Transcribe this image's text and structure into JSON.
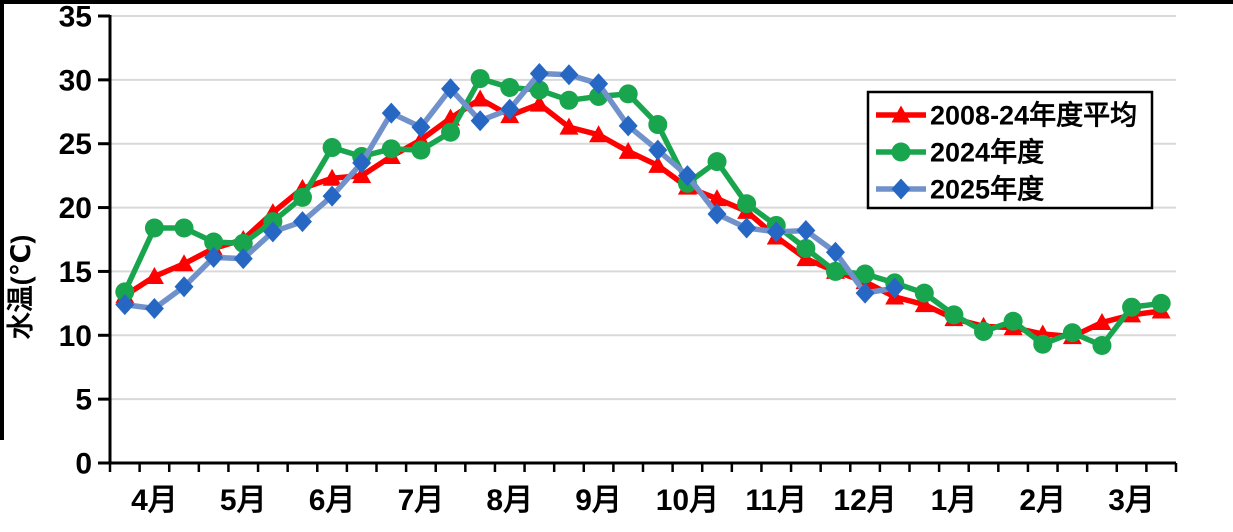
{
  "frame": {
    "top_border_color": "#000000",
    "left_border_color": "#000000",
    "background": "#ffffff"
  },
  "chart_data": {
    "type": "line",
    "title": "",
    "ylabel": "水温(℃)",
    "xlabel": "",
    "ylim": [
      0,
      35
    ],
    "yticks": [
      0,
      5,
      10,
      15,
      20,
      25,
      30,
      35
    ],
    "grid": "horizontal-light-gray",
    "grid_color": "#d9d9d9",
    "categories": [
      "4月",
      "5月",
      "6月",
      "7月",
      "8月",
      "9月",
      "10月",
      "11月",
      "12月",
      "1月",
      "2月",
      "3月"
    ],
    "points_per_month": 3,
    "x_slots": 36,
    "legend": {
      "position": "top-right",
      "border_color": "#000000",
      "labels": [
        "2008-24年度平均",
        "2024年度",
        "2025年度"
      ]
    },
    "series": [
      {
        "name": "2008-24年度平均",
        "marker": "triangle",
        "color": "#ff0000",
        "line_color": "#ff0000",
        "values": [
          13.1,
          14.6,
          15.6,
          16.8,
          17.5,
          19.6,
          21.5,
          22.3,
          22.5,
          24.0,
          25.3,
          27.0,
          28.5,
          27.2,
          28.1,
          26.3,
          25.7,
          24.4,
          23.3,
          21.6,
          20.7,
          19.7,
          17.7,
          16.0,
          15.0,
          14.2,
          13.0,
          12.4,
          11.3,
          10.7,
          10.6,
          10.1,
          9.9,
          11.0,
          11.6,
          11.9
        ]
      },
      {
        "name": "2024年度",
        "marker": "circle",
        "color": "#19a54e",
        "line_color": "#19a54e",
        "values": [
          13.4,
          18.4,
          18.4,
          17.3,
          17.2,
          18.9,
          20.8,
          24.7,
          24.0,
          24.6,
          24.5,
          25.9,
          30.1,
          29.4,
          29.2,
          28.4,
          28.7,
          28.9,
          26.5,
          21.9,
          23.6,
          20.3,
          18.6,
          16.8,
          15.0,
          14.8,
          14.1,
          13.3,
          11.6,
          10.3,
          11.1,
          9.3,
          10.2,
          9.2,
          12.2,
          12.5
        ]
      },
      {
        "name": "2025年度",
        "marker": "diamond",
        "color": "#2767c4",
        "line_color": "#7191cb",
        "values": [
          12.4,
          12.1,
          13.8,
          16.1,
          16.0,
          18.1,
          18.9,
          20.9,
          23.5,
          27.4,
          26.3,
          29.3,
          26.8,
          27.7,
          30.5,
          30.4,
          29.7,
          26.4,
          24.5,
          22.5,
          19.5,
          18.4,
          18.1,
          18.2,
          16.5,
          13.3,
          13.7
        ]
      }
    ]
  }
}
